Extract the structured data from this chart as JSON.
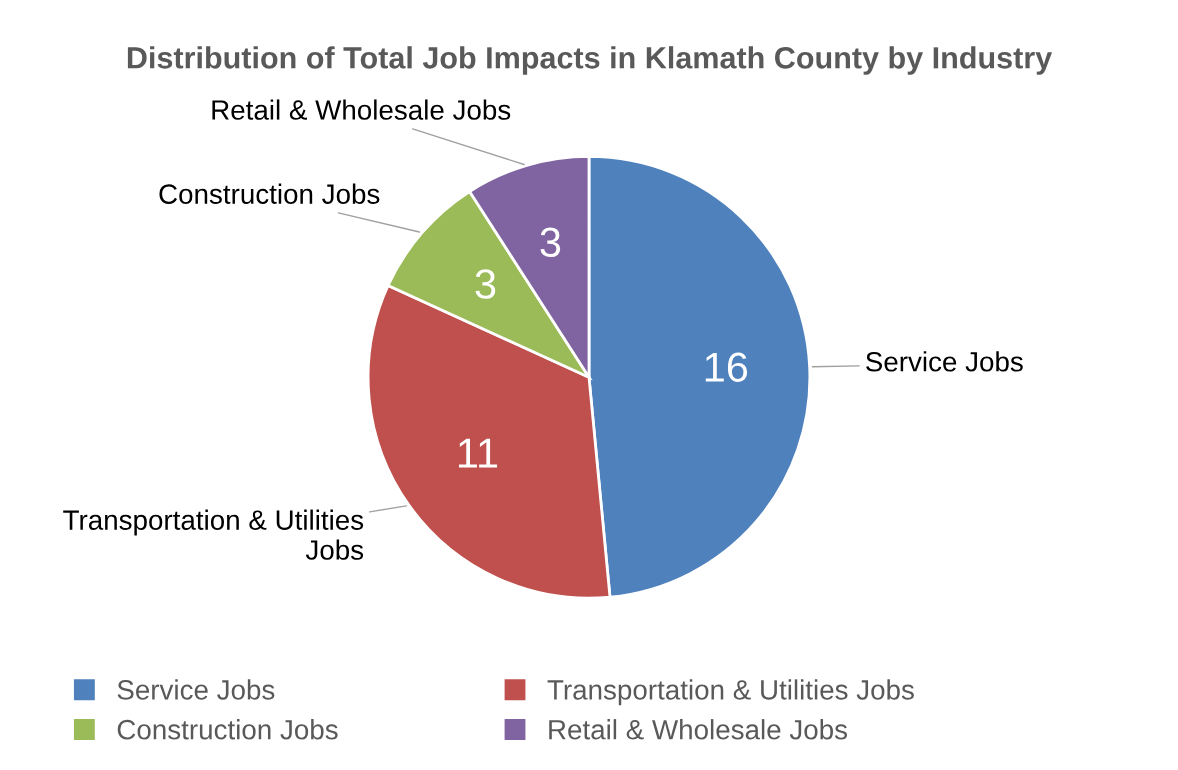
{
  "chart_data": {
    "type": "pie",
    "title": "Distribution of Total Job Impacts in Klamath County by Industry",
    "categories": [
      "Service Jobs",
      "Transportation & Utilities Jobs",
      "Construction Jobs",
      "Retail & Wholesale Jobs"
    ],
    "values": [
      16,
      11,
      3,
      3
    ],
    "colors": [
      "#4f81bd",
      "#c0504d",
      "#9bbb59",
      "#8064a2"
    ],
    "data_labels": true,
    "legend": "bottom"
  }
}
